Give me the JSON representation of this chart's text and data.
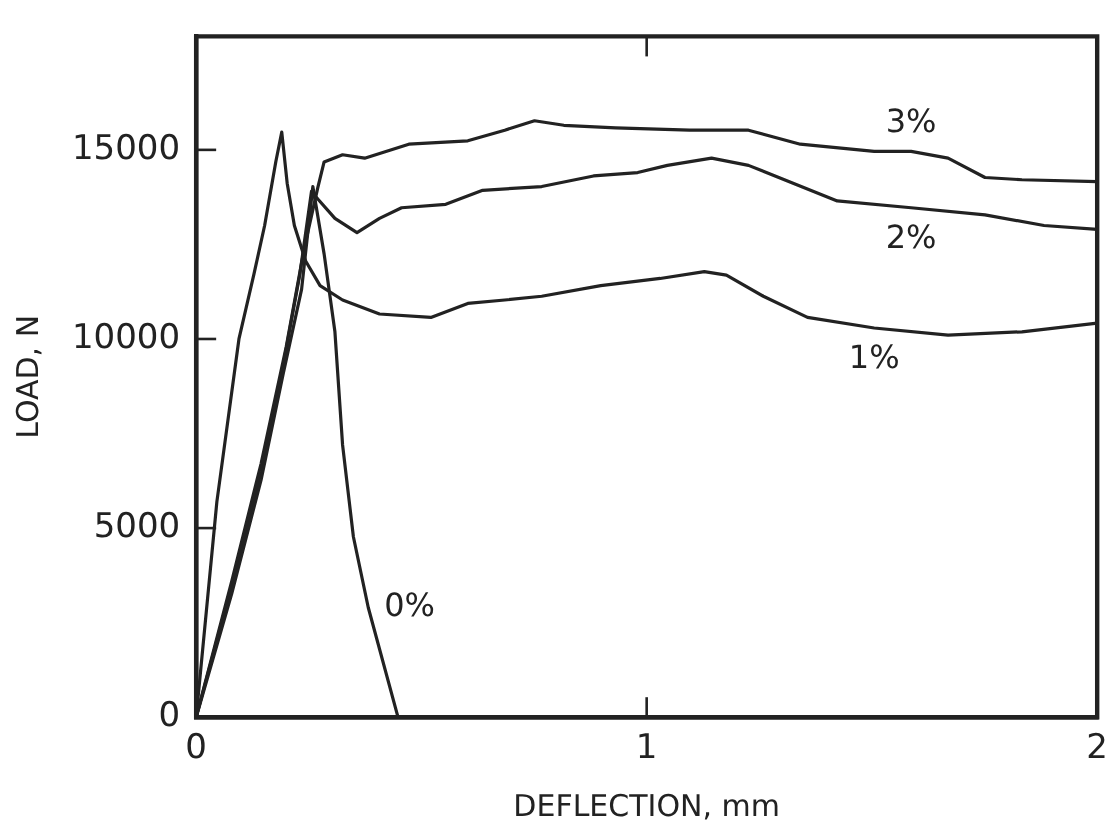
{
  "chart_data": {
    "type": "line",
    "xlabel": "DEFLECTION, mm",
    "ylabel": "LOAD, N",
    "xlim": [
      0,
      2
    ],
    "ylim": [
      0,
      18000
    ],
    "xticks": [
      0,
      1,
      2
    ],
    "yticks": [
      0,
      5000,
      10000,
      15000
    ],
    "grid": false,
    "legend": false,
    "marker": "none",
    "line_style": "solid",
    "series": [
      {
        "name": "0%",
        "color": "#222222",
        "x": [
          0,
          0.079,
          0.144,
          0.193,
          0.234,
          0.259,
          0.284,
          0.308,
          0.325,
          0.349,
          0.382,
          0.448
        ],
        "values": [
          0,
          3270,
          6270,
          9070,
          11310,
          14030,
          12250,
          10190,
          7200,
          4770,
          2900,
          0
        ]
      },
      {
        "name": "1%",
        "color": "#222222",
        "x": [
          0,
          0.046,
          0.095,
          0.128,
          0.152,
          0.177,
          0.19,
          0.202,
          0.218,
          0.243,
          0.275,
          0.325,
          0.407,
          0.521,
          0.603,
          0.685,
          0.767,
          0.898,
          1.03,
          1.128,
          1.177,
          1.259,
          1.357,
          1.505,
          1.669,
          1.833,
          2.0
        ],
        "values": [
          0,
          5700,
          10000,
          11700,
          13000,
          14700,
          15470,
          14120,
          13000,
          12060,
          11410,
          11030,
          10660,
          10570,
          10940,
          11030,
          11130,
          11410,
          11600,
          11780,
          11690,
          11130,
          10570,
          10290,
          10100,
          10190,
          10420
        ]
      },
      {
        "name": "2%",
        "color": "#222222",
        "x": [
          0,
          0.079,
          0.144,
          0.193,
          0.23,
          0.256,
          0.27,
          0.308,
          0.357,
          0.407,
          0.456,
          0.554,
          0.636,
          0.767,
          0.882,
          0.98,
          1.046,
          1.144,
          1.226,
          1.423,
          1.587,
          1.751,
          1.882,
          2.0
        ],
        "values": [
          0,
          3500,
          6500,
          9300,
          11700,
          13900,
          13700,
          13190,
          12810,
          13190,
          13470,
          13560,
          13930,
          14030,
          14310,
          14400,
          14590,
          14780,
          14590,
          13650,
          13470,
          13280,
          13000,
          12900
        ]
      },
      {
        "name": "3%",
        "color": "#222222",
        "x": [
          0,
          0.079,
          0.144,
          0.2,
          0.24,
          0.27,
          0.284,
          0.325,
          0.374,
          0.472,
          0.603,
          0.685,
          0.751,
          0.816,
          0.931,
          1.095,
          1.226,
          1.341,
          1.505,
          1.587,
          1.669,
          1.751,
          1.833,
          2.0
        ],
        "values": [
          0,
          3600,
          6700,
          9800,
          12400,
          14000,
          14680,
          14870,
          14780,
          15150,
          15240,
          15520,
          15770,
          15650,
          15580,
          15520,
          15520,
          15150,
          14960,
          14960,
          14780,
          14270,
          14210,
          14160
        ]
      }
    ]
  }
}
